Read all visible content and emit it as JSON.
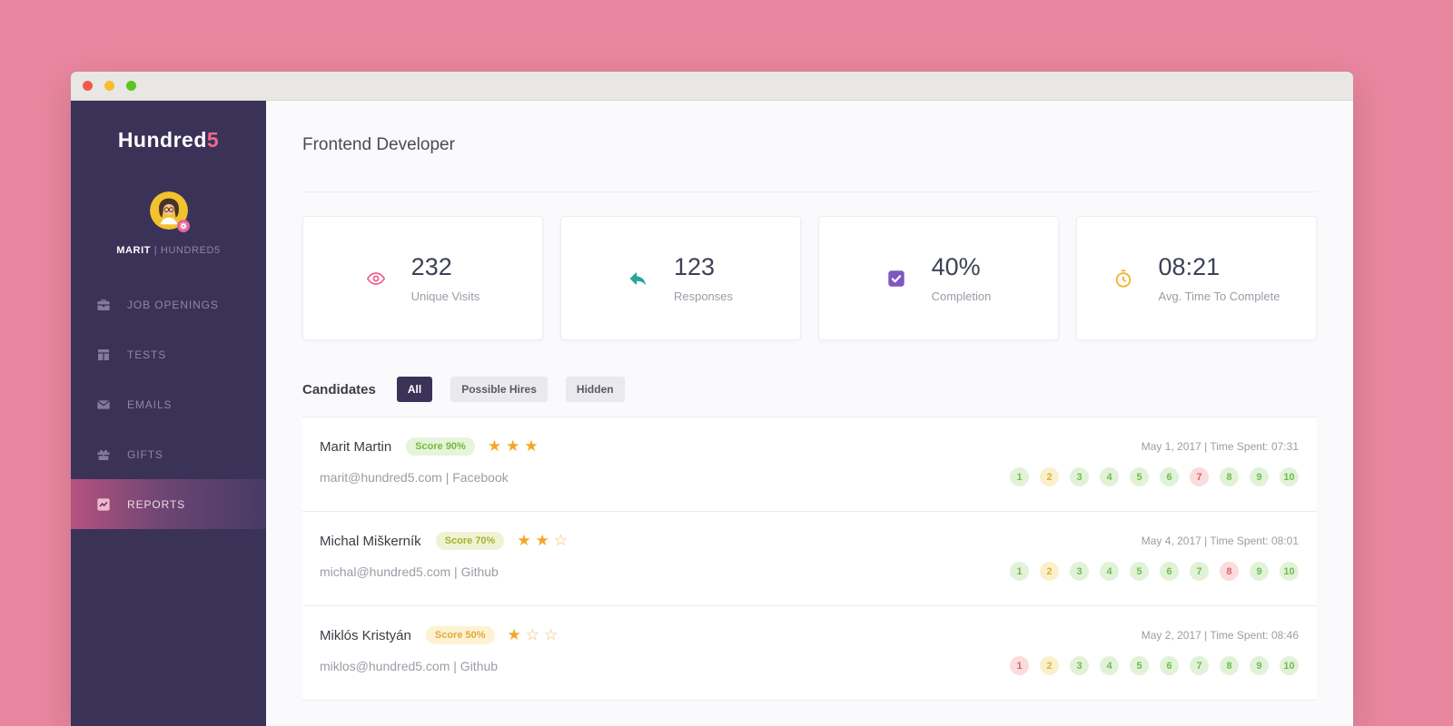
{
  "window": {
    "controls": [
      {
        "name": "close",
        "color": "#f4574e"
      },
      {
        "name": "minimize",
        "color": "#f8bd2d"
      },
      {
        "name": "zoom",
        "color": "#5dc521"
      }
    ]
  },
  "palette": {
    "background_pink": "#e8879f",
    "sidebar_purple": "#3b3258",
    "brand_pink": "#f0688f",
    "stat_visits_pink": "#f06292",
    "stat_responses_teal": "#26a69a",
    "stat_completion_purple": "#7e57c2",
    "stat_time_yellow": "#f2b42c",
    "status_green": "#6cbf4a",
    "status_yellow": "#dcb32f",
    "status_red": "#e2616c"
  },
  "sidebar": {
    "logo": {
      "text": "Hundred",
      "accent": "5"
    },
    "user": {
      "name": "MARIT",
      "separator": "|",
      "org": "HUNDRED5"
    },
    "items": [
      {
        "label": "JOB OPENINGS",
        "icon": "briefcase-icon",
        "active": false
      },
      {
        "label": "TESTS",
        "icon": "tests-grid-icon",
        "active": false
      },
      {
        "label": "EMAILS",
        "icon": "envelope-icon",
        "active": false
      },
      {
        "label": "GIFTS",
        "icon": "gift-icon",
        "active": false
      },
      {
        "label": "REPORTS",
        "icon": "chart-icon",
        "active": true
      }
    ]
  },
  "header": {
    "title": "Frontend Developer"
  },
  "stats": [
    {
      "icon": "eye-icon",
      "color": "#f06292",
      "value": "232",
      "label": "Unique Visits"
    },
    {
      "icon": "reply-icon",
      "color": "#26a69a",
      "value": "123",
      "label": "Responses"
    },
    {
      "icon": "checkbox-icon",
      "color": "#7e57c2",
      "value": "40%",
      "label": "Completion"
    },
    {
      "icon": "stopwatch-icon",
      "color": "#f2b42c",
      "value": "08:21",
      "label": "Avg. Time To Complete"
    }
  ],
  "candidates": {
    "title": "Candidates",
    "filters": [
      {
        "label": "All",
        "active": true
      },
      {
        "label": "Possible Hires",
        "active": false
      },
      {
        "label": "Hidden",
        "active": false
      }
    ],
    "rows": [
      {
        "name": "Marit Martin",
        "score_label": "Score 90%",
        "score_class": "green",
        "stars_filled": 3,
        "stars_total": 3,
        "meta": "May 1, 2017 | Time Spent: 07:31",
        "contact": "marit@hundred5.com | Facebook",
        "questions": [
          {
            "n": "1",
            "state": "green"
          },
          {
            "n": "2",
            "state": "yellow"
          },
          {
            "n": "3",
            "state": "green"
          },
          {
            "n": "4",
            "state": "green"
          },
          {
            "n": "5",
            "state": "green"
          },
          {
            "n": "6",
            "state": "green"
          },
          {
            "n": "7",
            "state": "pink"
          },
          {
            "n": "8",
            "state": "green"
          },
          {
            "n": "9",
            "state": "green"
          },
          {
            "n": "10",
            "state": "green"
          }
        ]
      },
      {
        "name": "Michal Miškerník",
        "score_label": "Score 70%",
        "score_class": "yellowgreen",
        "stars_filled": 2,
        "stars_total": 3,
        "meta": "May 4, 2017 | Time Spent: 08:01",
        "contact": "michal@hundred5.com | Github",
        "questions": [
          {
            "n": "1",
            "state": "green"
          },
          {
            "n": "2",
            "state": "yellow"
          },
          {
            "n": "3",
            "state": "green"
          },
          {
            "n": "4",
            "state": "green"
          },
          {
            "n": "5",
            "state": "green"
          },
          {
            "n": "6",
            "state": "green"
          },
          {
            "n": "7",
            "state": "green"
          },
          {
            "n": "8",
            "state": "pink"
          },
          {
            "n": "9",
            "state": "green"
          },
          {
            "n": "10",
            "state": "green"
          }
        ]
      },
      {
        "name": "Miklós Kristyán",
        "score_label": "Score 50%",
        "score_class": "orange",
        "stars_filled": 1,
        "stars_total": 3,
        "meta": "May 2, 2017 | Time Spent: 08:46",
        "contact": "miklos@hundred5.com | Github",
        "questions": [
          {
            "n": "1",
            "state": "pink"
          },
          {
            "n": "2",
            "state": "yellow"
          },
          {
            "n": "3",
            "state": "green"
          },
          {
            "n": "4",
            "state": "green"
          },
          {
            "n": "5",
            "state": "green"
          },
          {
            "n": "6",
            "state": "green"
          },
          {
            "n": "7",
            "state": "green"
          },
          {
            "n": "8",
            "state": "green"
          },
          {
            "n": "9",
            "state": "green"
          },
          {
            "n": "10",
            "state": "green"
          }
        ]
      }
    ]
  }
}
